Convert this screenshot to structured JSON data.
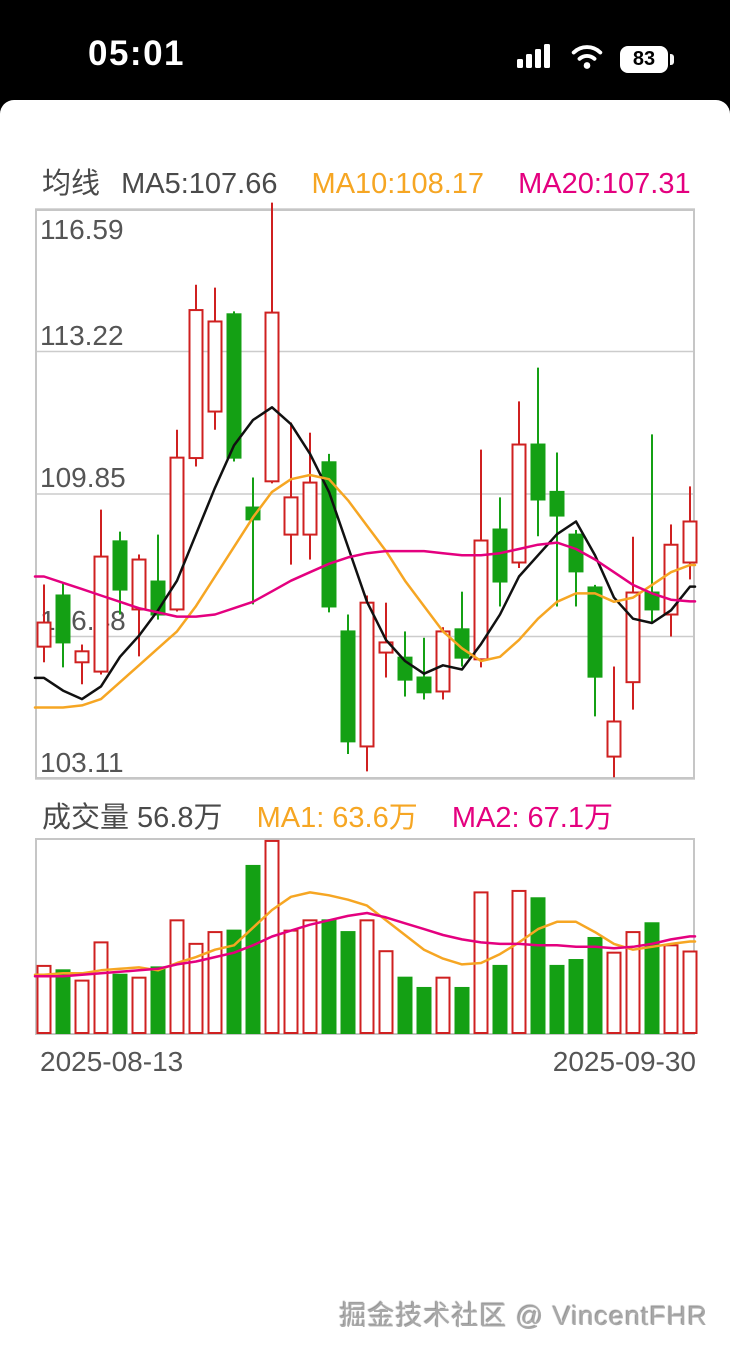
{
  "status_bar": {
    "time": "05:01",
    "battery": "83"
  },
  "price_legend": {
    "title": "均线",
    "ma5": "MA5:107.66",
    "ma10": "MA10:108.17",
    "ma20": "MA20:107.31"
  },
  "volume_legend": {
    "vol": "成交量 56.8万",
    "ma1": "MA1: 63.6万",
    "ma2": "MA2: 67.1万"
  },
  "x_axis": {
    "start_date": "2025-08-13",
    "end_date": "2025-09-30"
  },
  "watermark": {
    "text": "掘金技术社区 @ VincentFHR"
  },
  "colors": {
    "up": "#cf2020",
    "down": "#14a014",
    "ma5": "#111111",
    "ma10": "#f6a623",
    "ma20": "#e4007f",
    "grid": "#cccccc",
    "border": "#c6c6c6",
    "text": "#555555",
    "status_fg": "#ffffff"
  },
  "chart_data": [
    {
      "type": "candlestick",
      "title": "均线",
      "legend": [
        "MA5:107.66",
        "MA10:108.17",
        "MA20:107.31"
      ],
      "y_ticks": [
        "116.59",
        "113.22",
        "109.85",
        "106.48",
        "103.11"
      ],
      "ylim": [
        103.11,
        116.59
      ],
      "x_range": [
        "2025-08-13",
        "2025-09-30"
      ],
      "grid": true,
      "candles": [
        {
          "o": 106.24,
          "h": 107.71,
          "l": 105.87,
          "c": 106.81
        },
        {
          "o": 107.45,
          "h": 107.76,
          "l": 105.75,
          "c": 106.34
        },
        {
          "o": 105.87,
          "h": 106.29,
          "l": 105.35,
          "c": 106.13
        },
        {
          "o": 105.65,
          "h": 109.48,
          "l": 105.58,
          "c": 108.37
        },
        {
          "o": 108.73,
          "h": 108.96,
          "l": 107.0,
          "c": 107.59
        },
        {
          "o": 107.12,
          "h": 108.42,
          "l": 106.01,
          "c": 108.3
        },
        {
          "o": 107.78,
          "h": 108.89,
          "l": 106.88,
          "c": 107.0
        },
        {
          "o": 107.12,
          "h": 111.37,
          "l": 107.07,
          "c": 110.71
        },
        {
          "o": 110.7,
          "h": 114.8,
          "l": 110.5,
          "c": 114.2
        },
        {
          "o": 111.8,
          "h": 114.73,
          "l": 111.37,
          "c": 113.93
        },
        {
          "o": 114.1,
          "h": 114.17,
          "l": 110.62,
          "c": 110.71
        },
        {
          "o": 109.53,
          "h": 110.24,
          "l": 107.24,
          "c": 109.25
        },
        {
          "o": 110.15,
          "h": 116.74,
          "l": 110.1,
          "c": 114.14
        },
        {
          "o": 108.89,
          "h": 111.54,
          "l": 108.18,
          "c": 109.77
        },
        {
          "o": 108.89,
          "h": 111.3,
          "l": 108.3,
          "c": 110.12
        },
        {
          "o": 110.6,
          "h": 110.8,
          "l": 107.05,
          "c": 107.19
        },
        {
          "o": 106.6,
          "h": 107.0,
          "l": 103.7,
          "c": 104.0
        },
        {
          "o": 103.88,
          "h": 107.45,
          "l": 103.29,
          "c": 107.28
        },
        {
          "o": 106.1,
          "h": 107.28,
          "l": 105.51,
          "c": 106.34
        },
        {
          "o": 105.98,
          "h": 106.6,
          "l": 105.06,
          "c": 105.46
        },
        {
          "o": 105.51,
          "h": 106.45,
          "l": 104.99,
          "c": 105.16
        },
        {
          "o": 105.18,
          "h": 106.7,
          "l": 104.99,
          "c": 106.6
        },
        {
          "o": 106.65,
          "h": 107.54,
          "l": 105.77,
          "c": 105.98
        },
        {
          "o": 105.94,
          "h": 110.9,
          "l": 105.75,
          "c": 108.75
        },
        {
          "o": 109.01,
          "h": 109.77,
          "l": 107.19,
          "c": 107.78
        },
        {
          "o": 108.23,
          "h": 112.04,
          "l": 108.1,
          "c": 111.02
        },
        {
          "o": 111.02,
          "h": 112.84,
          "l": 108.85,
          "c": 109.72
        },
        {
          "o": 109.9,
          "h": 110.83,
          "l": 107.19,
          "c": 109.34
        },
        {
          "o": 108.89,
          "h": 109.0,
          "l": 107.19,
          "c": 108.02
        },
        {
          "o": 107.64,
          "h": 107.7,
          "l": 104.59,
          "c": 105.53
        },
        {
          "o": 103.64,
          "h": 105.77,
          "l": 103.15,
          "c": 104.47
        },
        {
          "o": 105.4,
          "h": 108.84,
          "l": 104.75,
          "c": 107.52
        },
        {
          "o": 107.52,
          "h": 111.26,
          "l": 106.81,
          "c": 107.12
        },
        {
          "o": 107.0,
          "h": 109.13,
          "l": 106.48,
          "c": 108.65
        },
        {
          "o": 108.23,
          "h": 110.03,
          "l": 107.83,
          "c": 109.2
        }
      ],
      "series": [
        {
          "name": "MA5",
          "color": "#111111",
          "values": [
            105.5,
            105.2,
            105.0,
            105.3,
            106.0,
            106.5,
            107.1,
            107.8,
            108.9,
            110.0,
            111.0,
            111.6,
            111.9,
            111.5,
            110.8,
            109.9,
            108.6,
            107.3,
            106.4,
            105.9,
            105.6,
            105.8,
            105.7,
            106.3,
            107.0,
            107.9,
            108.4,
            108.9,
            109.2,
            108.4,
            107.4,
            106.9,
            106.8,
            107.1,
            107.66
          ]
        },
        {
          "name": "MA10",
          "color": "#f6a623",
          "values": [
            104.8,
            104.8,
            104.85,
            105.0,
            105.4,
            105.8,
            106.2,
            106.6,
            107.2,
            107.9,
            108.6,
            109.3,
            109.9,
            110.2,
            110.3,
            110.2,
            109.7,
            109.1,
            108.5,
            107.8,
            107.2,
            106.6,
            106.2,
            105.9,
            106.0,
            106.4,
            106.9,
            107.3,
            107.5,
            107.5,
            107.3,
            107.4,
            107.7,
            108.0,
            108.17
          ]
        },
        {
          "name": "MA20",
          "color": "#e4007f",
          "values": [
            107.9,
            107.75,
            107.6,
            107.45,
            107.3,
            107.15,
            107.05,
            106.95,
            106.95,
            107.0,
            107.15,
            107.3,
            107.55,
            107.8,
            108.0,
            108.2,
            108.35,
            108.45,
            108.5,
            108.5,
            108.5,
            108.45,
            108.4,
            108.4,
            108.45,
            108.55,
            108.65,
            108.7,
            108.55,
            108.3,
            108.0,
            107.7,
            107.5,
            107.35,
            107.31
          ]
        }
      ]
    },
    {
      "type": "bar",
      "title": "成交量",
      "current_value": "56.8万",
      "unit": "万",
      "ylim": [
        0,
        134
      ],
      "grid": false,
      "values": [
        47,
        44,
        37,
        63,
        41,
        39,
        46,
        78,
        62,
        70,
        71,
        115,
        132,
        71,
        78,
        78,
        70,
        78,
        57,
        39,
        32,
        39,
        32,
        97,
        47,
        98,
        93,
        47,
        51,
        66,
        56,
        70,
        76,
        61,
        56.8
      ],
      "series": [
        {
          "name": "MA1",
          "color": "#f6a623",
          "values": [
            41,
            42,
            42,
            44,
            45,
            46,
            44,
            49,
            53,
            58,
            61,
            73,
            85,
            94,
            97,
            95,
            92,
            88,
            78,
            68,
            58,
            52,
            48,
            49,
            55,
            63,
            72,
            77,
            77,
            70,
            62,
            58,
            60,
            62,
            63.6
          ]
        },
        {
          "name": "MA2",
          "color": "#e4007f",
          "values": [
            40,
            40,
            41,
            42,
            43,
            44,
            45,
            48,
            50,
            53,
            56,
            61,
            67,
            71,
            75,
            78,
            81,
            83,
            80,
            76,
            72,
            68,
            65,
            63,
            62,
            62,
            61,
            61,
            60,
            60,
            59,
            60,
            62,
            65,
            67.1
          ]
        }
      ]
    }
  ]
}
